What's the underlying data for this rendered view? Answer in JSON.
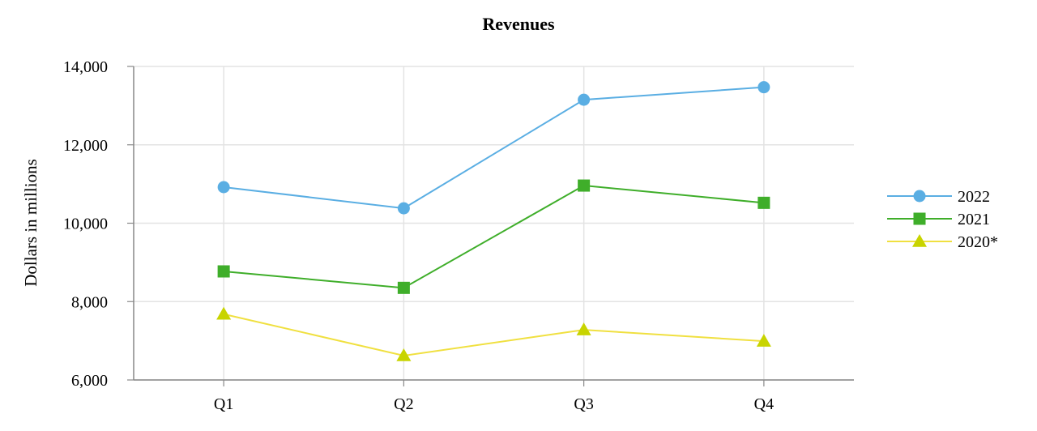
{
  "chart_data": {
    "type": "line",
    "title": "Revenues",
    "xlabel": "",
    "ylabel": "Dollars in millions",
    "categories": [
      "Q1",
      "Q2",
      "Q3",
      "Q4"
    ],
    "ylim": [
      6000,
      14000
    ],
    "yticks": [
      6000,
      8000,
      10000,
      12000,
      14000
    ],
    "ytick_labels": [
      "6,000",
      "8,000",
      "10,000",
      "12,000",
      "14,000"
    ],
    "grid": true,
    "legend_position": "right",
    "series": [
      {
        "name": "2022",
        "color": "#5aaee3",
        "marker": "circle",
        "values": [
          10920,
          10380,
          13150,
          13470
        ]
      },
      {
        "name": "2021",
        "color": "#3fae2a",
        "marker": "square",
        "values": [
          8770,
          8350,
          10960,
          10520
        ]
      },
      {
        "name": "2020*",
        "color": "#c8d400",
        "line_color": "#f0e040",
        "marker": "triangle",
        "values": [
          7680,
          6620,
          7280,
          6990
        ]
      }
    ]
  }
}
